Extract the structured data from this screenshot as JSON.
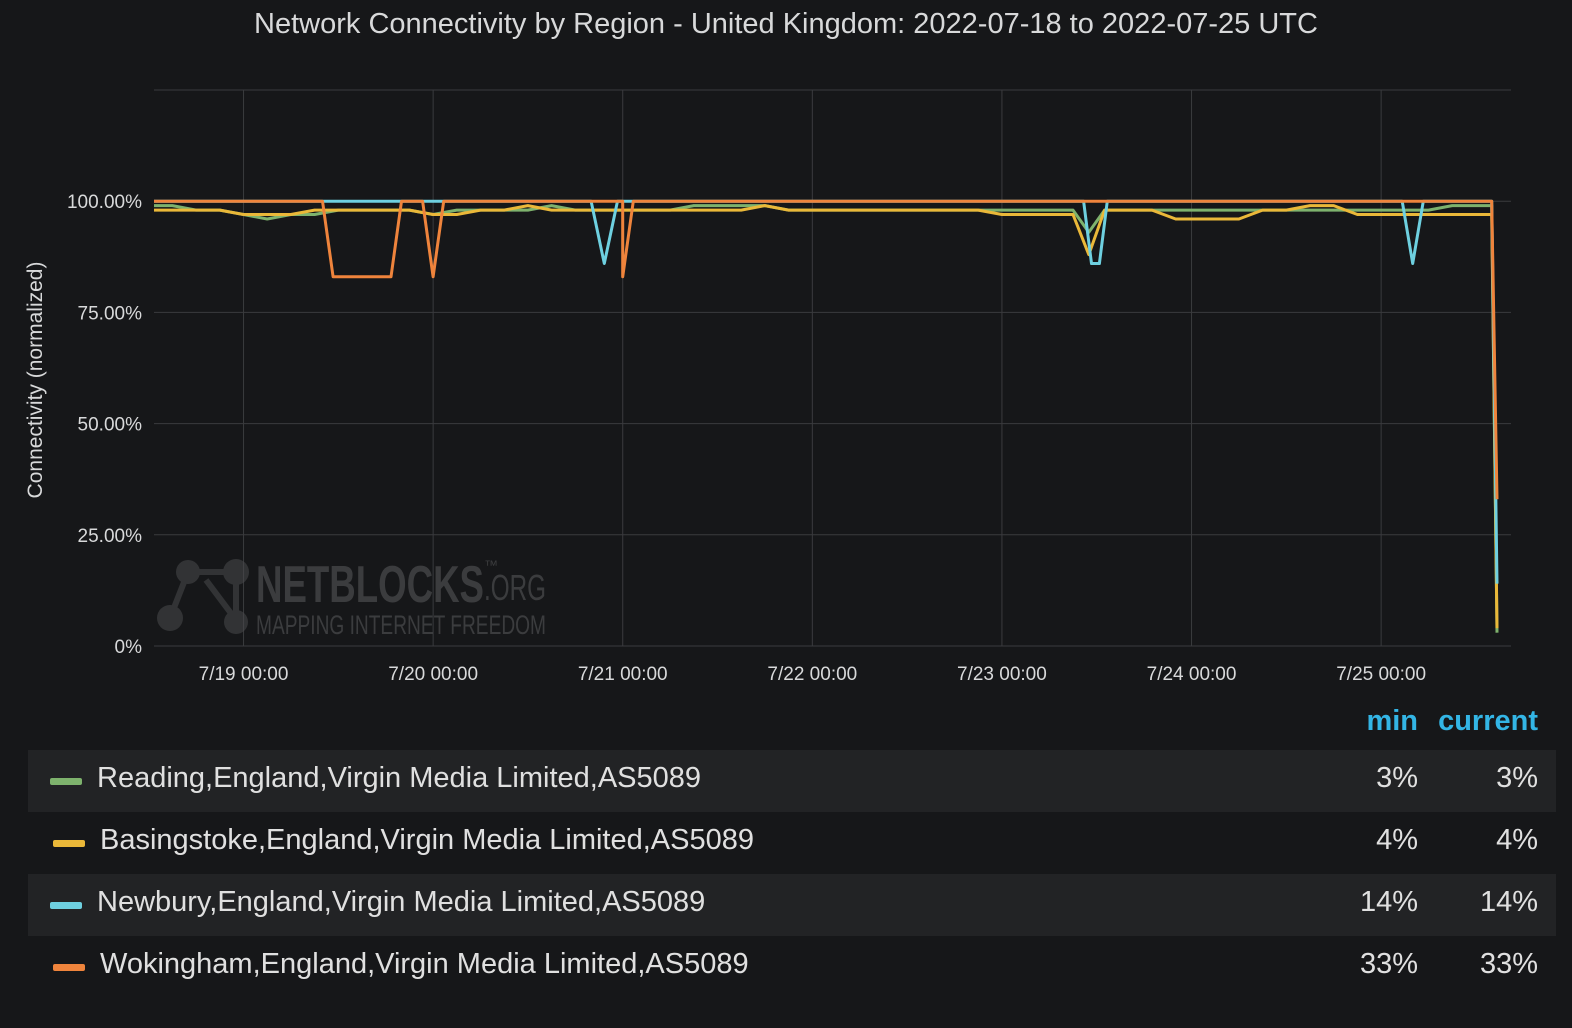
{
  "chart_data": {
    "type": "line",
    "title": "Network Connectivity by Region - United Kingdom: 2022-07-18 to 2022-07-25 UTC",
    "ylabel": "Connectivity (normalized)",
    "xlabel": "",
    "x_range": [
      "2022-07-18 12:40",
      "2022-07-25 14:40"
    ],
    "ylim": [
      0,
      125
    ],
    "y_ticks": [
      0,
      25,
      50,
      75,
      100
    ],
    "y_tick_labels": [
      "0%",
      "25.00%",
      "50.00%",
      "75.00%",
      "100.00%"
    ],
    "x_ticks": [
      "2022-07-19 00:00",
      "2022-07-20 00:00",
      "2022-07-21 00:00",
      "2022-07-22 00:00",
      "2022-07-23 00:00",
      "2022-07-24 00:00",
      "2022-07-25 00:00"
    ],
    "x_tick_labels": [
      "7/19 00:00",
      "7/20 00:00",
      "7/21 00:00",
      "7/22 00:00",
      "7/23 00:00",
      "7/24 00:00",
      "7/25 00:00"
    ],
    "grid": true,
    "legend_position": "bottom",
    "series": [
      {
        "name": "Reading,England,Virgin Media Limited,AS5089",
        "color": "#7eb26d",
        "min": "3%",
        "current": "3%",
        "points": [
          [
            "2022-07-18 12:40",
            99
          ],
          [
            "2022-07-18 15:00",
            99
          ],
          [
            "2022-07-18 18:00",
            98
          ],
          [
            "2022-07-18 21:00",
            98
          ],
          [
            "2022-07-19 00:00",
            97
          ],
          [
            "2022-07-19 03:00",
            96
          ],
          [
            "2022-07-19 06:00",
            97
          ],
          [
            "2022-07-19 09:00",
            97
          ],
          [
            "2022-07-19 12:00",
            98
          ],
          [
            "2022-07-19 15:00",
            98
          ],
          [
            "2022-07-19 18:00",
            98
          ],
          [
            "2022-07-19 21:00",
            98
          ],
          [
            "2022-07-20 00:00",
            97
          ],
          [
            "2022-07-20 03:00",
            98
          ],
          [
            "2022-07-20 06:00",
            98
          ],
          [
            "2022-07-20 09:00",
            98
          ],
          [
            "2022-07-20 12:00",
            98
          ],
          [
            "2022-07-20 15:00",
            99
          ],
          [
            "2022-07-20 18:00",
            98
          ],
          [
            "2022-07-20 21:00",
            98
          ],
          [
            "2022-07-21 00:00",
            98
          ],
          [
            "2022-07-21 03:00",
            98
          ],
          [
            "2022-07-21 06:00",
            98
          ],
          [
            "2022-07-21 09:00",
            99
          ],
          [
            "2022-07-21 12:00",
            99
          ],
          [
            "2022-07-21 15:00",
            99
          ],
          [
            "2022-07-21 18:00",
            99
          ],
          [
            "2022-07-21 21:00",
            98
          ],
          [
            "2022-07-22 00:00",
            98
          ],
          [
            "2022-07-22 03:00",
            98
          ],
          [
            "2022-07-22 06:00",
            98
          ],
          [
            "2022-07-22 09:00",
            98
          ],
          [
            "2022-07-22 12:00",
            98
          ],
          [
            "2022-07-22 15:00",
            98
          ],
          [
            "2022-07-22 18:00",
            98
          ],
          [
            "2022-07-22 21:00",
            98
          ],
          [
            "2022-07-23 00:00",
            98
          ],
          [
            "2022-07-23 03:00",
            98
          ],
          [
            "2022-07-23 06:00",
            98
          ],
          [
            "2022-07-23 09:00",
            98
          ],
          [
            "2022-07-23 11:00",
            93
          ],
          [
            "2022-07-23 13:00",
            98
          ],
          [
            "2022-07-23 16:00",
            98
          ],
          [
            "2022-07-23 19:00",
            98
          ],
          [
            "2022-07-23 22:00",
            98
          ],
          [
            "2022-07-24 00:00",
            98
          ],
          [
            "2022-07-24 03:00",
            98
          ],
          [
            "2022-07-24 06:00",
            98
          ],
          [
            "2022-07-24 09:00",
            98
          ],
          [
            "2022-07-24 12:00",
            98
          ],
          [
            "2022-07-24 15:00",
            98
          ],
          [
            "2022-07-24 18:00",
            98
          ],
          [
            "2022-07-24 21:00",
            98
          ],
          [
            "2022-07-25 00:00",
            98
          ],
          [
            "2022-07-25 03:00",
            98
          ],
          [
            "2022-07-25 06:00",
            98
          ],
          [
            "2022-07-25 09:00",
            99
          ],
          [
            "2022-07-25 12:00",
            99
          ],
          [
            "2022-07-25 14:00",
            99
          ],
          [
            "2022-07-25 14:40",
            3
          ]
        ]
      },
      {
        "name": "Basingstoke,England,Virgin Media Limited,AS5089",
        "color": "#eab839",
        "min": "4%",
        "current": "4%",
        "points": [
          [
            "2022-07-18 12:40",
            98
          ],
          [
            "2022-07-18 15:00",
            98
          ],
          [
            "2022-07-18 18:00",
            98
          ],
          [
            "2022-07-18 21:00",
            98
          ],
          [
            "2022-07-19 00:00",
            97
          ],
          [
            "2022-07-19 03:00",
            97
          ],
          [
            "2022-07-19 06:00",
            97
          ],
          [
            "2022-07-19 09:00",
            98
          ],
          [
            "2022-07-19 12:00",
            98
          ],
          [
            "2022-07-19 15:00",
            98
          ],
          [
            "2022-07-19 18:00",
            98
          ],
          [
            "2022-07-19 21:00",
            98
          ],
          [
            "2022-07-20 00:00",
            97
          ],
          [
            "2022-07-20 03:00",
            97
          ],
          [
            "2022-07-20 06:00",
            98
          ],
          [
            "2022-07-20 09:00",
            98
          ],
          [
            "2022-07-20 12:00",
            99
          ],
          [
            "2022-07-20 15:00",
            98
          ],
          [
            "2022-07-20 18:00",
            98
          ],
          [
            "2022-07-20 21:00",
            98
          ],
          [
            "2022-07-21 00:00",
            98
          ],
          [
            "2022-07-21 03:00",
            98
          ],
          [
            "2022-07-21 06:00",
            98
          ],
          [
            "2022-07-21 09:00",
            98
          ],
          [
            "2022-07-21 12:00",
            98
          ],
          [
            "2022-07-21 15:00",
            98
          ],
          [
            "2022-07-21 18:00",
            99
          ],
          [
            "2022-07-21 21:00",
            98
          ],
          [
            "2022-07-22 00:00",
            98
          ],
          [
            "2022-07-22 03:00",
            98
          ],
          [
            "2022-07-22 06:00",
            98
          ],
          [
            "2022-07-22 09:00",
            98
          ],
          [
            "2022-07-22 12:00",
            98
          ],
          [
            "2022-07-22 15:00",
            98
          ],
          [
            "2022-07-22 18:00",
            98
          ],
          [
            "2022-07-22 21:00",
            98
          ],
          [
            "2022-07-23 00:00",
            97
          ],
          [
            "2022-07-23 03:00",
            97
          ],
          [
            "2022-07-23 06:00",
            97
          ],
          [
            "2022-07-23 09:00",
            97
          ],
          [
            "2022-07-23 11:00",
            88
          ],
          [
            "2022-07-23 13:00",
            98
          ],
          [
            "2022-07-23 16:00",
            98
          ],
          [
            "2022-07-23 19:00",
            98
          ],
          [
            "2022-07-23 22:00",
            96
          ],
          [
            "2022-07-24 00:00",
            96
          ],
          [
            "2022-07-24 03:00",
            96
          ],
          [
            "2022-07-24 06:00",
            96
          ],
          [
            "2022-07-24 09:00",
            98
          ],
          [
            "2022-07-24 12:00",
            98
          ],
          [
            "2022-07-24 15:00",
            99
          ],
          [
            "2022-07-24 18:00",
            99
          ],
          [
            "2022-07-24 21:00",
            97
          ],
          [
            "2022-07-25 00:00",
            97
          ],
          [
            "2022-07-25 03:00",
            97
          ],
          [
            "2022-07-25 06:00",
            97
          ],
          [
            "2022-07-25 09:00",
            97
          ],
          [
            "2022-07-25 12:00",
            97
          ],
          [
            "2022-07-25 14:00",
            97
          ],
          [
            "2022-07-25 14:40",
            4
          ]
        ]
      },
      {
        "name": "Newbury,England,Virgin Media Limited,AS5089",
        "color": "#6ed0e0",
        "min": "14%",
        "current": "14%",
        "points": [
          [
            "2022-07-18 12:40",
            100
          ],
          [
            "2022-07-19 00:00",
            100
          ],
          [
            "2022-07-19 12:00",
            100
          ],
          [
            "2022-07-20 00:00",
            100
          ],
          [
            "2022-07-20 12:00",
            100
          ],
          [
            "2022-07-20 20:00",
            100
          ],
          [
            "2022-07-20 21:40",
            86
          ],
          [
            "2022-07-20 23:20",
            100
          ],
          [
            "2022-07-21 12:00",
            100
          ],
          [
            "2022-07-22 00:00",
            100
          ],
          [
            "2022-07-22 12:00",
            100
          ],
          [
            "2022-07-23 00:00",
            100
          ],
          [
            "2022-07-23 10:20",
            100
          ],
          [
            "2022-07-23 11:20",
            86
          ],
          [
            "2022-07-23 12:20",
            86
          ],
          [
            "2022-07-23 13:20",
            100
          ],
          [
            "2022-07-24 00:00",
            100
          ],
          [
            "2022-07-24 12:00",
            100
          ],
          [
            "2022-07-25 00:00",
            100
          ],
          [
            "2022-07-25 02:40",
            100
          ],
          [
            "2022-07-25 04:00",
            86
          ],
          [
            "2022-07-25 05:20",
            100
          ],
          [
            "2022-07-25 14:00",
            100
          ],
          [
            "2022-07-25 14:40",
            14
          ]
        ]
      },
      {
        "name": "Wokingham,England,Virgin Media Limited,AS5089",
        "color": "#ef843c",
        "min": "33%",
        "current": "33%",
        "points": [
          [
            "2022-07-18 12:40",
            100
          ],
          [
            "2022-07-19 00:00",
            100
          ],
          [
            "2022-07-19 10:00",
            100
          ],
          [
            "2022-07-19 11:20",
            83
          ],
          [
            "2022-07-19 18:40",
            83
          ],
          [
            "2022-07-19 20:00",
            100
          ],
          [
            "2022-07-19 22:40",
            100
          ],
          [
            "2022-07-20 00:00",
            83
          ],
          [
            "2022-07-20 01:20",
            100
          ],
          [
            "2022-07-20 20:00",
            100
          ],
          [
            "2022-07-21 00:00",
            100
          ],
          [
            "2022-07-21 00:00",
            83
          ],
          [
            "2022-07-21 01:20",
            100
          ],
          [
            "2022-07-22 00:00",
            100
          ],
          [
            "2022-07-23 00:00",
            100
          ],
          [
            "2022-07-24 00:00",
            100
          ],
          [
            "2022-07-25 00:00",
            100
          ],
          [
            "2022-07-25 14:00",
            100
          ],
          [
            "2022-07-25 14:40",
            33
          ]
        ]
      }
    ]
  },
  "watermark": {
    "brand": "NETBLOCKS",
    "tm": "™",
    "suffix": ".ORG",
    "tagline": "MAPPING INTERNET FREEDOM"
  },
  "legend": {
    "min_header": "min",
    "current_header": "current"
  }
}
